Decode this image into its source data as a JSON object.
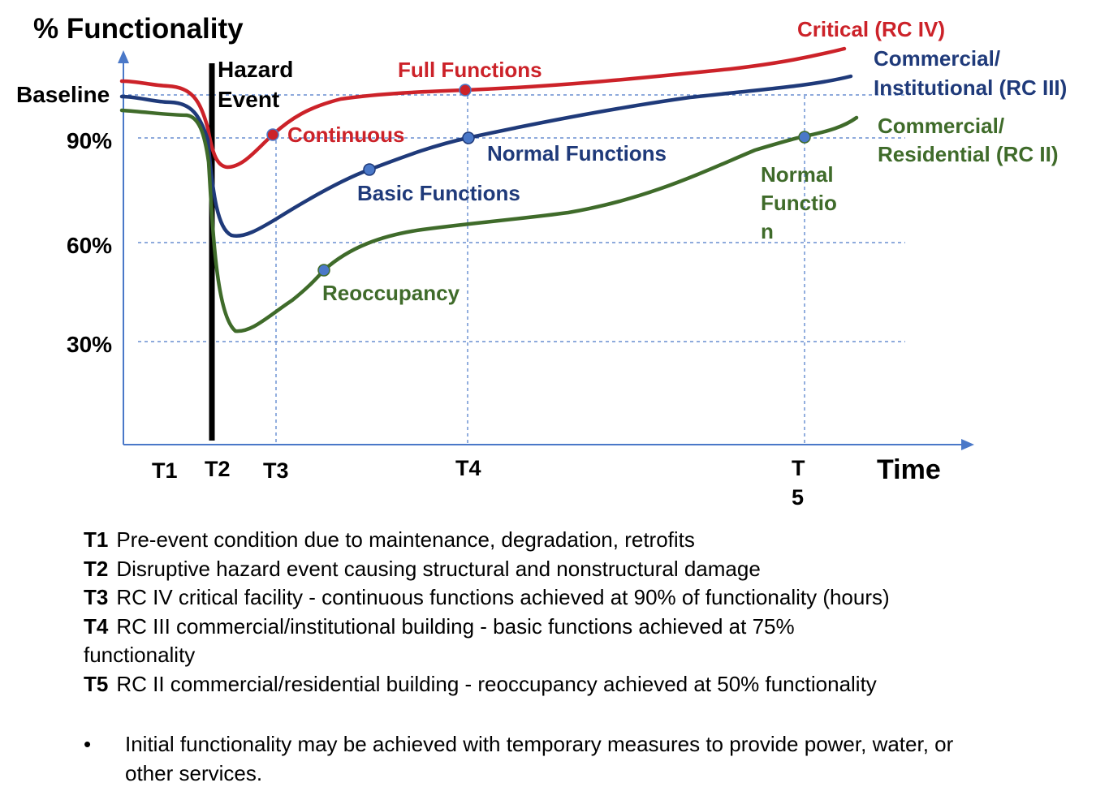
{
  "colors": {
    "critical": "#cc2229",
    "institutional": "#1f3a7a",
    "residential": "#3f6b2a",
    "marker_blue": "#4a78c8",
    "grid": "#4a78c8",
    "axis": "#4a78c8",
    "hazard_line": "#000000"
  },
  "chart_data": {
    "type": "line",
    "title": "% Functionality",
    "xlabel": "Time",
    "ylabel": "% Functionality",
    "y_ticks": [
      "Baseline",
      "90%",
      "60%",
      "30%"
    ],
    "x_ticks": [
      "T1",
      "T2",
      "T3",
      "T4",
      "T5"
    ],
    "grid": true,
    "hazard_label": "Hazard Event",
    "series": [
      {
        "name": "Critical (RC IV)",
        "key": "critical"
      },
      {
        "name": "Commercial/ Institutional (RC III)",
        "key": "institutional"
      },
      {
        "name": "Commercial/ Residential (RC II)",
        "key": "residential"
      }
    ],
    "annotations": [
      {
        "text": "Full Functions",
        "series": "critical"
      },
      {
        "text": "Continuous",
        "series": "critical"
      },
      {
        "text": "Normal Functions",
        "series": "institutional"
      },
      {
        "text": "Basic Functions",
        "series": "institutional"
      },
      {
        "text": "Normal Function",
        "series": "residential"
      },
      {
        "text": "Reoccupancy",
        "series": "residential"
      }
    ]
  },
  "legend": {
    "items": [
      {
        "code": "T1",
        "text": "Pre-event condition due to maintenance, degradation, retrofits"
      },
      {
        "code": "T2",
        "text": "Disruptive hazard event causing structural and nonstructural damage"
      },
      {
        "code": "T3",
        "text": "RC IV critical facility - continuous functions achieved at 90% of functionality (hours)"
      },
      {
        "code": "T4",
        "text": "RC III commercial/institutional building - basic functions achieved at 75% functionality"
      },
      {
        "code": "T5",
        "text": "RC II commercial/residential building - reoccupancy achieved at 50% functionality"
      }
    ],
    "bullet": "•",
    "note": "Initial functionality may be achieved with temporary measures to provide power, water, or other services."
  }
}
